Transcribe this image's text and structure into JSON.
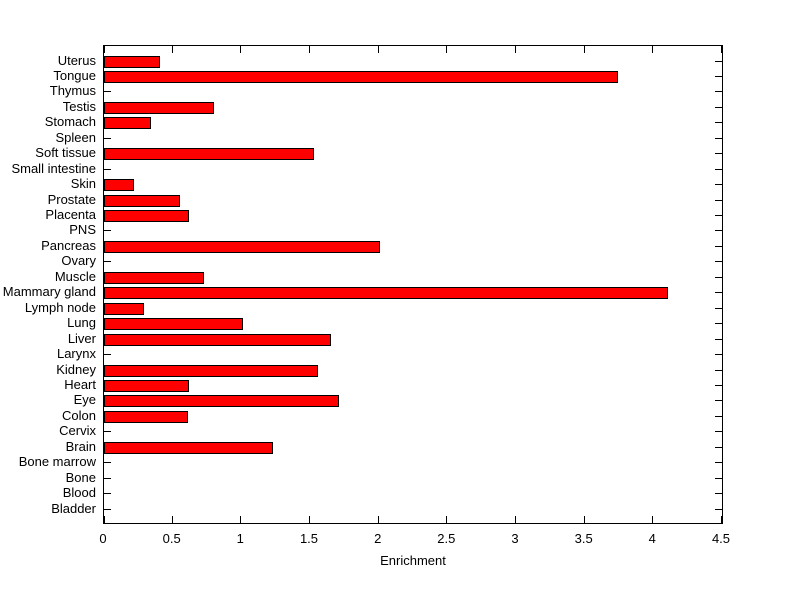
{
  "chart_data": {
    "type": "bar",
    "orientation": "horizontal",
    "title": "",
    "xlabel": "Enrichment",
    "ylabel": "",
    "xlim": [
      0,
      4.5
    ],
    "xticks": [
      0,
      0.5,
      1,
      1.5,
      2,
      2.5,
      3,
      3.5,
      4,
      4.5
    ],
    "xtick_labels": [
      "0",
      "0.5",
      "1",
      "1.5",
      "2",
      "2.5",
      "3",
      "3.5",
      "4",
      "4.5"
    ],
    "categories_top_to_bottom": [
      "Uterus",
      "Tongue",
      "Thymus",
      "Testis",
      "Stomach",
      "Spleen",
      "Soft tissue",
      "Small intestine",
      "Skin",
      "Prostate",
      "Placenta",
      "PNS",
      "Pancreas",
      "Ovary",
      "Muscle",
      "Mammary gland",
      "Lymph node",
      "Lung",
      "Liver",
      "Larynx",
      "Kidney",
      "Heart",
      "Eye",
      "Colon",
      "Cervix",
      "Brain",
      "Bone marrow",
      "Bone",
      "Blood",
      "Bladder"
    ],
    "values": [
      0.41,
      3.74,
      0,
      0.8,
      0.34,
      0,
      1.53,
      0,
      0.22,
      0.55,
      0.62,
      0,
      2.01,
      0,
      0.73,
      4.11,
      0.29,
      1.01,
      1.65,
      0,
      1.56,
      0.62,
      1.71,
      0.61,
      0,
      1.23,
      0,
      0,
      0,
      0
    ],
    "bar_color": "#ff0000",
    "bar_edge_color": "#000000",
    "axis_color": "#000000",
    "background_color": "#ffffff",
    "grid": false,
    "legend": null
  }
}
